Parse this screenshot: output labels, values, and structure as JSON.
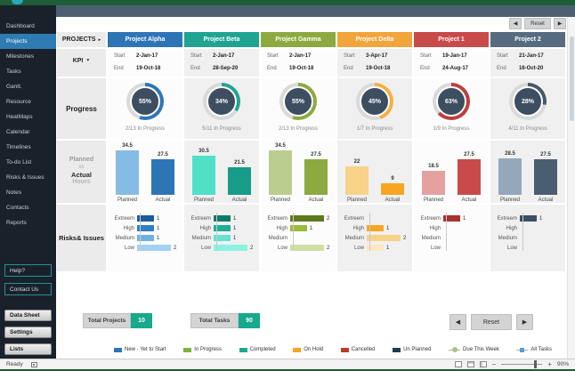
{
  "theme": {
    "window_green": "#1f5c39",
    "topbar": "#4d6071",
    "sidebar_bg": "#19222b",
    "active_item_blue": "#2e7cb2",
    "total_value_green": "#16a98c",
    "donut_hole": "#3d4e61"
  },
  "sidebar": {
    "items": [
      {
        "label": "Dashboard",
        "active": false
      },
      {
        "label": "Projects",
        "active": true
      },
      {
        "label": "Milestones",
        "active": false
      },
      {
        "label": "Tasks",
        "active": false
      },
      {
        "label": "Gantt.",
        "active": false
      },
      {
        "label": "Resource",
        "active": false
      },
      {
        "label": "HeatMaps",
        "active": false
      },
      {
        "label": "Calendar",
        "active": false
      },
      {
        "label": "Timelines",
        "active": false
      },
      {
        "label": "To-do List",
        "active": false
      },
      {
        "label": "Risks & Issues",
        "active": false
      },
      {
        "label": "Notes",
        "active": false
      },
      {
        "label": "Contacts",
        "active": false
      },
      {
        "label": "Reports",
        "active": false
      }
    ],
    "help_buttons": [
      "Help?",
      "Contact Us"
    ],
    "bottom_buttons": [
      "Data Sheet",
      "Settings",
      "Lists"
    ]
  },
  "nav": {
    "prev": "◀",
    "reset": "Reset",
    "next": "▶"
  },
  "board": {
    "projects_label": "PROJECTS",
    "projects_arrow": "▸",
    "kpi_label": "KPI",
    "kpi_arrow": "▼",
    "start_label": "Start",
    "end_label": "End",
    "progress_label": "Progress",
    "planned_label": "Planned",
    "vs_label": "vs",
    "actual_label": "Actual",
    "hours_label": "Hours",
    "risks_label": "Risks& Issues",
    "bar_planned_label": "Planned",
    "bar_actual_label": "Actual",
    "risk_levels": [
      "Extreem",
      "High",
      "Medium",
      "Low"
    ]
  },
  "projects": [
    {
      "name": "Project Alpha",
      "start": "2-Jan-17",
      "end": "19-Oct-18",
      "progress": 55,
      "progress_label": "55%",
      "note": "2/13 In Progress",
      "planned": "34.5",
      "actual": "27.5",
      "planned_h": 50,
      "actual_h": 40,
      "risks": [
        1,
        1,
        1,
        2
      ],
      "colors": {
        "header": "#2e75b6",
        "arc": "#2e75b6",
        "planned": "#85bce4",
        "actual": "#2e75b6",
        "risks": [
          "#1c5c9e",
          "#2e7fc2",
          "#6fb2e2",
          "#a3d1f2"
        ]
      }
    },
    {
      "name": "Project Beta",
      "start": "2-Jan-17",
      "end": "28-Sep-20",
      "progress": 34,
      "progress_label": "34%",
      "note": "5/11 In Progress",
      "planned": "30.5",
      "actual": "21.5",
      "planned_h": 44,
      "actual_h": 31,
      "risks": [
        1,
        1,
        1,
        2
      ],
      "colors": {
        "header": "#1fa492",
        "arc": "#1fa492",
        "planned": "#4fe0ca",
        "actual": "#169c87",
        "risks": [
          "#0e7b6a",
          "#1fae97",
          "#63e2cd",
          "#8bf2df"
        ]
      }
    },
    {
      "name": "Project Gamma",
      "start": "2-Jan-17",
      "end": "19-Oct-18",
      "progress": 55,
      "progress_label": "55%",
      "note": "2/13 In Progress",
      "planned": "34.5",
      "actual": "27.5",
      "planned_h": 50,
      "actual_h": 40,
      "risks": [
        2,
        1,
        null,
        2
      ],
      "colors": {
        "header": "#8caa3f",
        "arc": "#8caa3f",
        "planned": "#bccd90",
        "actual": "#8caa3f",
        "risks": [
          "#5f7a1e",
          "#9cba3f",
          null,
          "#cfe0a4"
        ]
      }
    },
    {
      "name": "Project Delta",
      "start": "3-Apr-17",
      "end": "19-Oct-18",
      "progress": 45,
      "progress_label": "45%",
      "note": "1/7 In Progress",
      "planned": "22",
      "actual": "9",
      "planned_h": 32,
      "actual_h": 13,
      "risks": [
        null,
        1,
        2,
        1
      ],
      "colors": {
        "header": "#f2a53a",
        "arc": "#f5b041",
        "planned": "#f8d289",
        "actual": "#f5a623",
        "risks": [
          null,
          "#f5a623",
          "#f8d289",
          "#fce8c2"
        ]
      }
    },
    {
      "name": "Project 1",
      "start": "19-Jan-17",
      "end": "24-Aug-17",
      "progress": 63,
      "progress_label": "63%",
      "note": "1/9 In Progress",
      "planned": "18.5",
      "actual": "27.5",
      "planned_h": 27,
      "actual_h": 40,
      "risks": [
        1,
        null,
        null,
        null
      ],
      "colors": {
        "header": "#c94a4a",
        "arc": "#bd3e3e",
        "planned": "#e5a0a0",
        "actual": "#c94a4a",
        "risks": [
          "#a83232",
          null,
          null,
          null
        ]
      }
    },
    {
      "name": "Project 2",
      "start": "21-Jan-17",
      "end": "16-Oct-20",
      "progress": 28,
      "progress_label": "28%",
      "note": "4/11 In Progress",
      "planned": "28.5",
      "actual": "27.5",
      "planned_h": 41,
      "actual_h": 40,
      "risks": [
        1,
        null,
        null,
        null
      ],
      "colors": {
        "header": "#576b80",
        "arc": "#46586b",
        "planned": "#94a8bb",
        "actual": "#4b5e71",
        "risks": [
          "#3d5062",
          null,
          null,
          null
        ]
      }
    }
  ],
  "footer": {
    "total_projects_label": "Total Projects",
    "total_projects_value": "10",
    "total_tasks_label": "Total Tasks",
    "total_tasks_value": "90"
  },
  "legend": [
    {
      "label": "New - Yet to Start",
      "color": "#2e75b6",
      "marker": "square"
    },
    {
      "label": "In Progress",
      "color": "#7fb13c",
      "marker": "square"
    },
    {
      "label": "Completed",
      "color": "#1aab8e",
      "marker": "square"
    },
    {
      "label": "On Hold",
      "color": "#f5a623",
      "marker": "square"
    },
    {
      "label": "Cancelled",
      "color": "#c0392b",
      "marker": "square"
    },
    {
      "label": "Un Planned",
      "color": "#1f3a54",
      "marker": "square"
    },
    {
      "label": "Due This Week",
      "color": "#a9c47f",
      "marker": "line-circle"
    },
    {
      "label": "All Tasks",
      "color": "#5b9bd5",
      "marker": "line-square"
    }
  ],
  "status": {
    "ready": "Ready",
    "zoom_minus": "−",
    "zoom_plus": "+",
    "zoom_value": "90%"
  },
  "chart_data": [
    {
      "type": "pie",
      "title": "Progress (% complete per project)",
      "categories": [
        "Project Alpha",
        "Project Beta",
        "Project Gamma",
        "Project Delta",
        "Project 1",
        "Project 2"
      ],
      "values": [
        55,
        34,
        55,
        45,
        63,
        28
      ],
      "annotations": [
        "2/13 In Progress",
        "5/11 In Progress",
        "2/13 In Progress",
        "1/7 In Progress",
        "1/9 In Progress",
        "4/11 In Progress"
      ]
    },
    {
      "type": "bar",
      "title": "Planned vs Actual Hours",
      "categories": [
        "Project Alpha",
        "Project Beta",
        "Project Gamma",
        "Project Delta",
        "Project 1",
        "Project 2"
      ],
      "series": [
        {
          "name": "Planned",
          "values": [
            34.5,
            30.5,
            34.5,
            22,
            18.5,
            28.5
          ]
        },
        {
          "name": "Actual",
          "values": [
            27.5,
            21.5,
            27.5,
            9,
            27.5,
            27.5
          ]
        }
      ]
    },
    {
      "type": "bar",
      "title": "Risks & Issues (count by severity)",
      "categories": [
        "Extreem",
        "High",
        "Medium",
        "Low"
      ],
      "series": [
        {
          "name": "Project Alpha",
          "values": [
            1,
            1,
            1,
            2
          ]
        },
        {
          "name": "Project Beta",
          "values": [
            1,
            1,
            1,
            2
          ]
        },
        {
          "name": "Project Gamma",
          "values": [
            2,
            1,
            null,
            2
          ]
        },
        {
          "name": "Project Delta",
          "values": [
            null,
            1,
            2,
            1
          ]
        },
        {
          "name": "Project 1",
          "values": [
            1,
            null,
            null,
            null
          ]
        },
        {
          "name": "Project 2",
          "values": [
            1,
            null,
            null,
            null
          ]
        }
      ]
    }
  ]
}
